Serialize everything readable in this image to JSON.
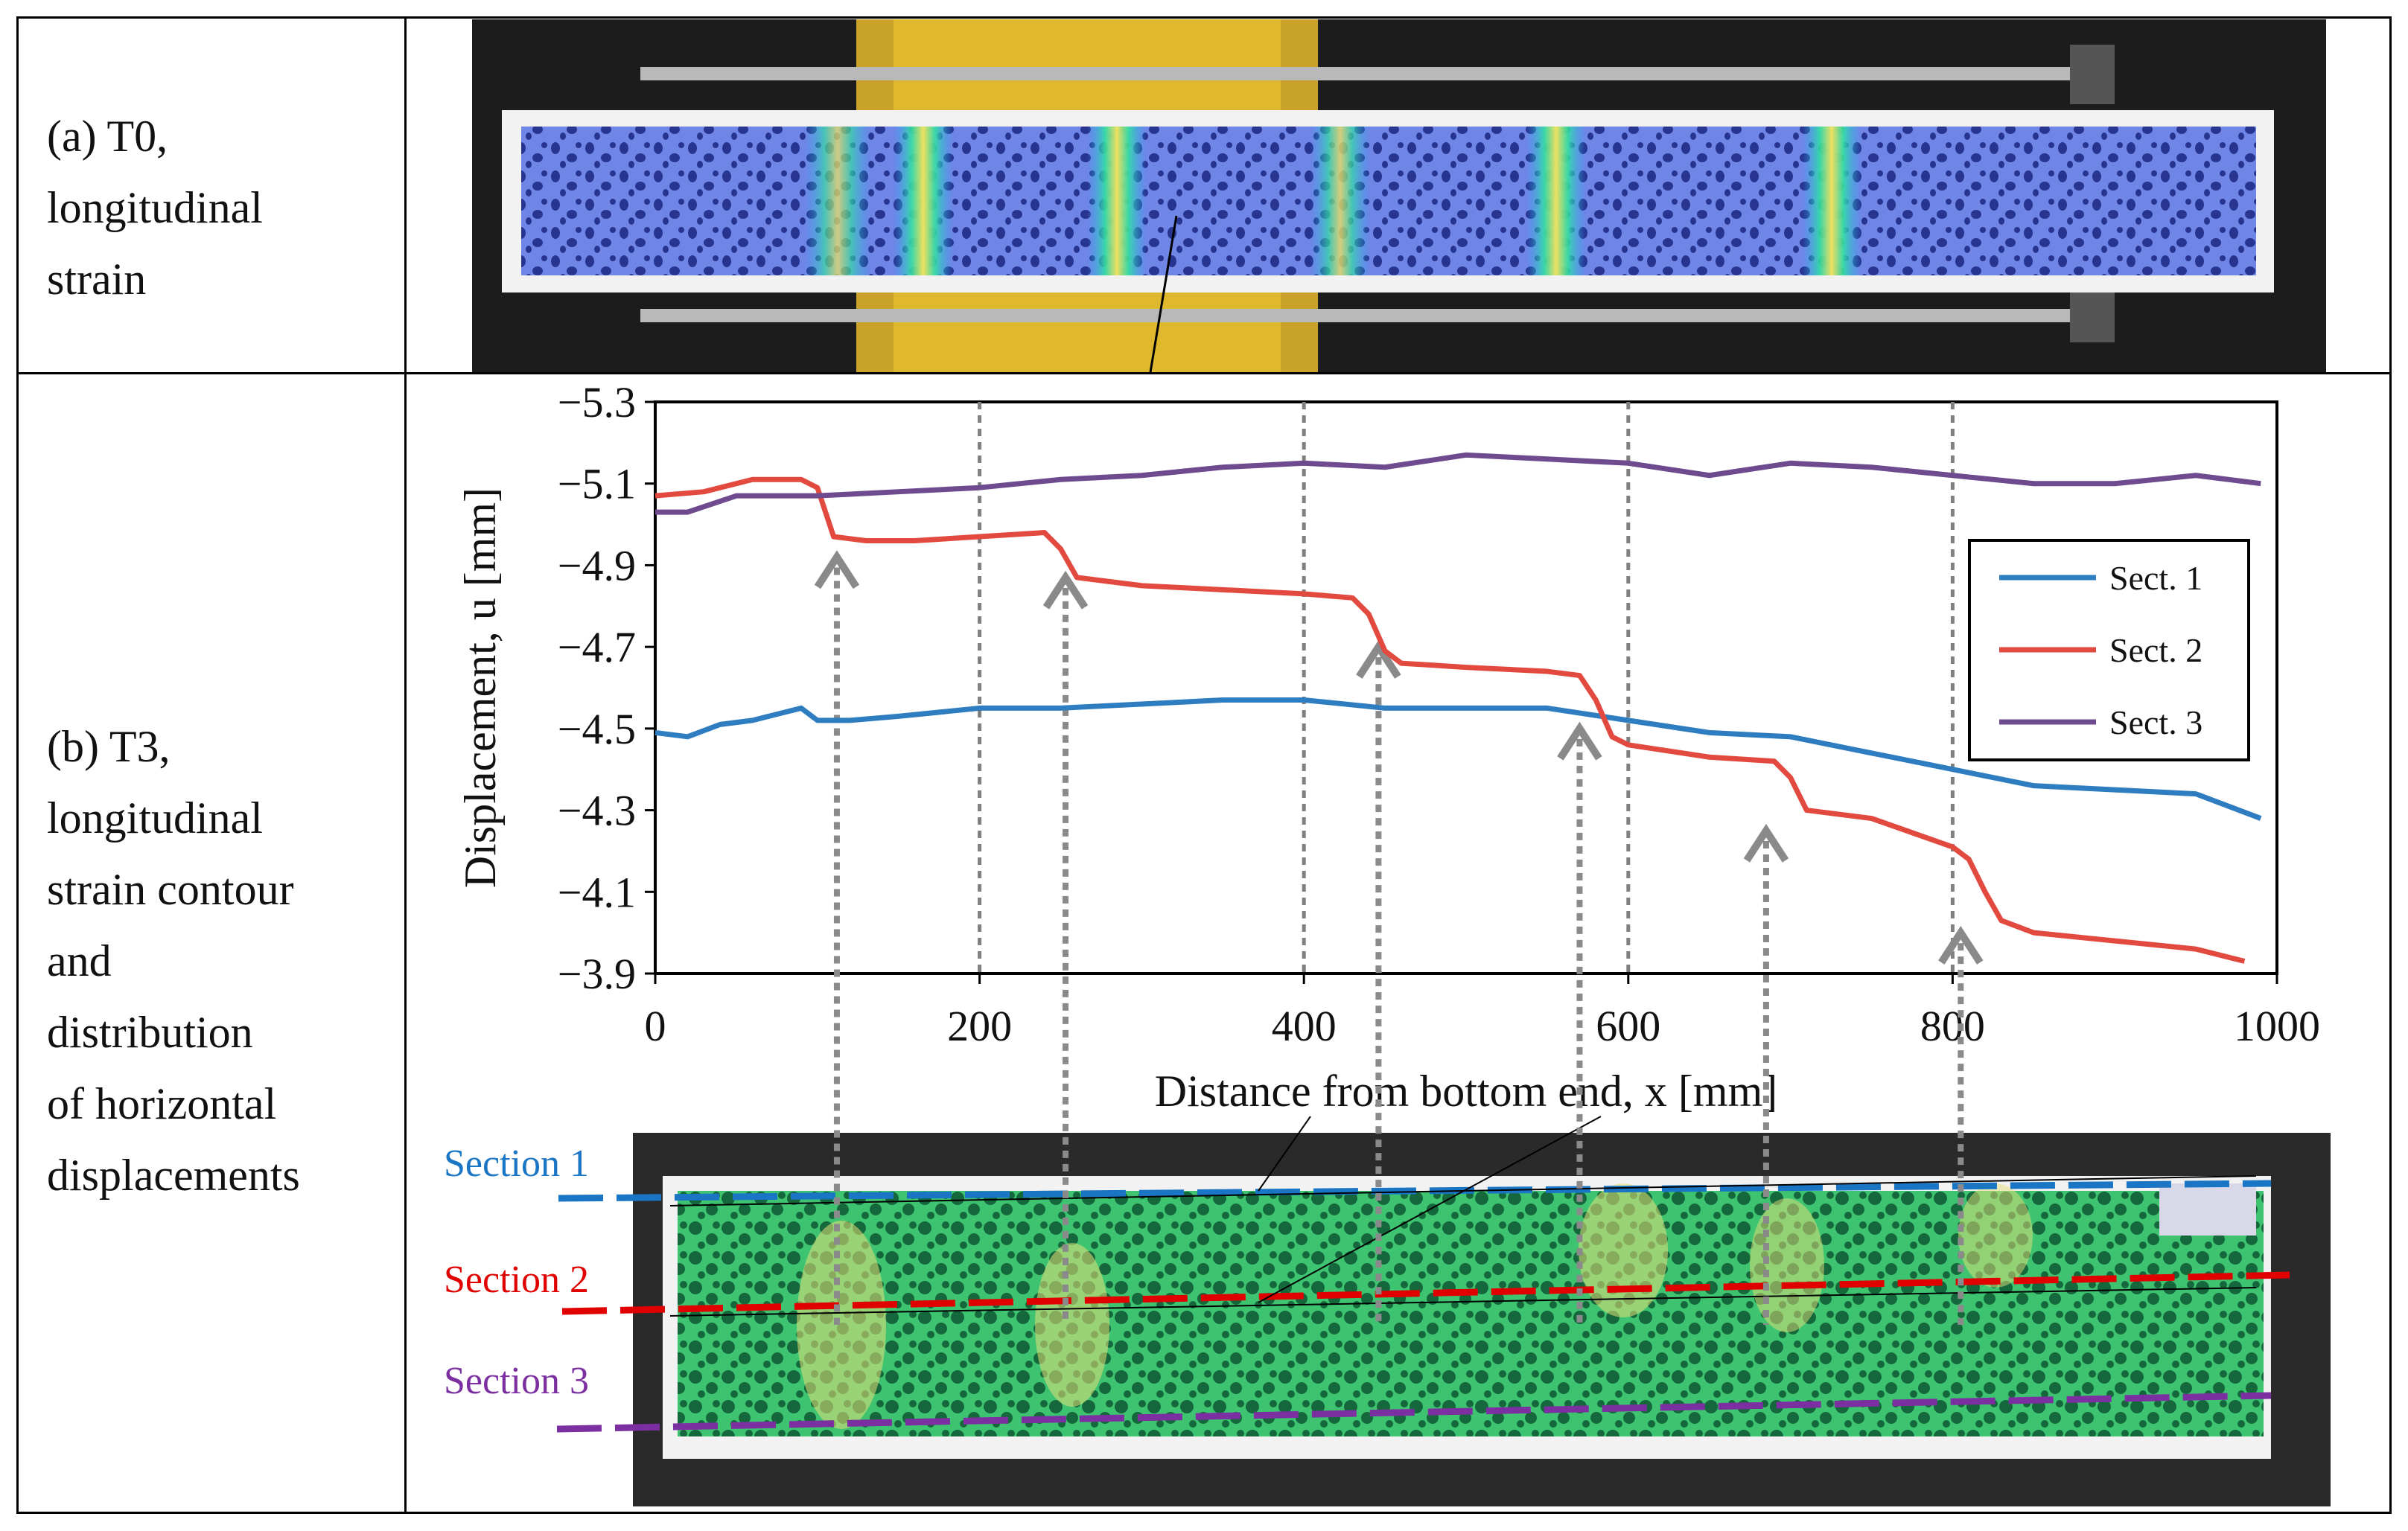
{
  "rows": [
    {
      "label_lines": [
        "(a) T0,",
        "longitudinal",
        "strain"
      ]
    },
    {
      "label_lines": [
        "(b) T3,",
        "longitudinal",
        "strain contour",
        "and",
        "distribution",
        "of horizontal",
        "displacements"
      ]
    }
  ],
  "section_labels": [
    {
      "text": "Section 1",
      "color": "#1a75c4"
    },
    {
      "text": "Section 2",
      "color": "#e00000"
    },
    {
      "text": "Section 3",
      "color": "#7b2fa0"
    }
  ],
  "chart_data": {
    "type": "line",
    "xlabel": "Distance from bottom end, x [mm]",
    "ylabel": "Displacement, u [mm]",
    "xlim": [
      0,
      1000
    ],
    "ylim": [
      -3.9,
      -5.3
    ],
    "y_reversed": true,
    "xticks": [
      "0",
      "200",
      "400",
      "600",
      "800",
      "1000"
    ],
    "yticks": [
      "−5.3",
      "−5.1",
      "−4.9",
      "−4.7",
      "−4.5",
      "−4.3",
      "−4.1",
      "−3.9"
    ],
    "ytick_values": [
      -5.3,
      -5.1,
      -4.9,
      -4.7,
      -4.5,
      -4.3,
      -4.1,
      -3.9
    ],
    "xtick_values": [
      0,
      200,
      400,
      600,
      800,
      1000
    ],
    "vertical_gridlines_at": [
      200,
      400,
      600,
      800
    ],
    "legend_position": "right",
    "series": [
      {
        "name": "Sect. 1",
        "color": "#2e7dc0",
        "x": [
          0,
          20,
          40,
          60,
          80,
          90,
          100,
          120,
          150,
          200,
          250,
          300,
          350,
          400,
          450,
          500,
          550,
          600,
          650,
          700,
          750,
          800,
          850,
          900,
          950,
          990
        ],
        "y": [
          -4.49,
          -4.48,
          -4.51,
          -4.52,
          -4.54,
          -4.55,
          -4.52,
          -4.52,
          -4.53,
          -4.55,
          -4.55,
          -4.56,
          -4.57,
          -4.57,
          -4.55,
          -4.55,
          -4.55,
          -4.52,
          -4.49,
          -4.48,
          -4.44,
          -4.4,
          -4.36,
          -4.35,
          -4.34,
          -4.28
        ]
      },
      {
        "name": "Sect. 2",
        "color": "#e24a3f",
        "x": [
          0,
          30,
          60,
          90,
          100,
          110,
          130,
          160,
          200,
          240,
          250,
          260,
          280,
          300,
          350,
          400,
          430,
          440,
          450,
          460,
          500,
          550,
          570,
          580,
          590,
          600,
          650,
          690,
          700,
          710,
          750,
          800,
          810,
          820,
          830,
          850,
          900,
          950,
          980
        ],
        "y": [
          -5.07,
          -5.08,
          -5.11,
          -5.11,
          -5.09,
          -4.97,
          -4.96,
          -4.96,
          -4.97,
          -4.98,
          -4.94,
          -4.87,
          -4.86,
          -4.85,
          -4.84,
          -4.83,
          -4.82,
          -4.78,
          -4.69,
          -4.66,
          -4.65,
          -4.64,
          -4.63,
          -4.57,
          -4.48,
          -4.46,
          -4.43,
          -4.42,
          -4.38,
          -4.3,
          -4.28,
          -4.21,
          -4.18,
          -4.1,
          -4.03,
          -4.0,
          -3.98,
          -3.96,
          -3.93
        ]
      },
      {
        "name": "Sect. 3",
        "color": "#6e4a8e",
        "x": [
          0,
          20,
          50,
          100,
          150,
          200,
          250,
          300,
          350,
          400,
          450,
          500,
          550,
          600,
          650,
          700,
          750,
          800,
          850,
          900,
          950,
          990
        ],
        "y": [
          -5.03,
          -5.03,
          -5.07,
          -5.07,
          -5.08,
          -5.09,
          -5.11,
          -5.12,
          -5.14,
          -5.15,
          -5.14,
          -5.17,
          -5.16,
          -5.15,
          -5.12,
          -5.15,
          -5.14,
          -5.12,
          -5.1,
          -5.1,
          -5.12,
          -5.1
        ]
      }
    ],
    "arrows_x": [
      112,
      253,
      446,
      570,
      685,
      805
    ],
    "arrows_y": [
      -4.92,
      -4.87,
      -4.7,
      -4.5,
      -4.25,
      -4.0
    ]
  }
}
